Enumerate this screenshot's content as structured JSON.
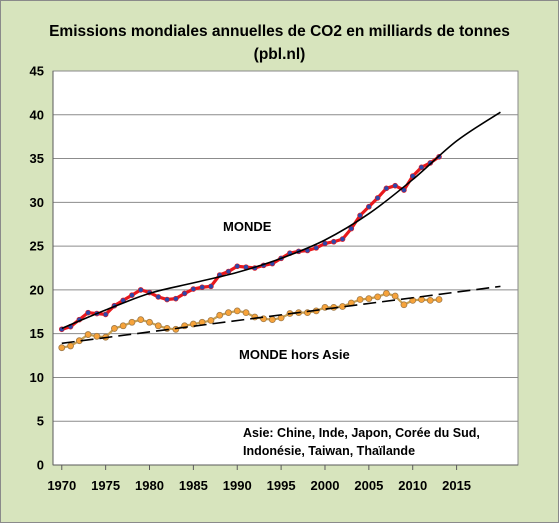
{
  "chart_data": {
    "type": "line",
    "title": "Emissions mondiales annuelles de CO2 en milliards de tonnes",
    "subtitle": "(pbl.nl)",
    "xlabel": "",
    "ylabel": "",
    "xlim": [
      1969,
      2022
    ],
    "ylim": [
      0,
      45
    ],
    "x_ticks": [
      1970,
      1975,
      1980,
      1985,
      1990,
      1995,
      2000,
      2005,
      2010,
      2015
    ],
    "y_ticks": [
      0,
      5,
      10,
      15,
      20,
      25,
      30,
      35,
      40,
      45
    ],
    "grid": {
      "horizontal": true,
      "vertical": false
    },
    "annotations": {
      "world": "MONDE",
      "world_ex_asia": "MONDE hors Asie",
      "note_line1": "Asie: Chine, Inde, Japon, Corée du Sud,",
      "note_line2": "Indonésie,  Taiwan, Thaïlande"
    },
    "series": [
      {
        "key": "world",
        "style": "markers-red-blue",
        "x": [
          1970,
          1971,
          1972,
          1973,
          1974,
          1975,
          1976,
          1977,
          1978,
          1979,
          1980,
          1981,
          1982,
          1983,
          1984,
          1985,
          1986,
          1987,
          1988,
          1989,
          1990,
          1991,
          1992,
          1993,
          1994,
          1995,
          1996,
          1997,
          1998,
          1999,
          2000,
          2001,
          2002,
          2003,
          2004,
          2005,
          2006,
          2007,
          2008,
          2009,
          2010,
          2011,
          2012,
          2013
        ],
        "values": [
          15.5,
          15.8,
          16.6,
          17.4,
          17.3,
          17.2,
          18.2,
          18.8,
          19.4,
          20.0,
          19.7,
          19.2,
          18.9,
          19.0,
          19.6,
          20.1,
          20.3,
          20.4,
          21.7,
          22.1,
          22.7,
          22.6,
          22.5,
          22.8,
          23.0,
          23.6,
          24.2,
          24.4,
          24.5,
          24.8,
          25.3,
          25.5,
          25.8,
          27.0,
          28.5,
          29.5,
          30.5,
          31.6,
          31.9,
          31.4,
          33.0,
          34.0,
          34.5,
          35.2
        ]
      },
      {
        "key": "world_trend",
        "style": "solid-black",
        "x": [
          1970,
          1975,
          1980,
          1985,
          1990,
          1995,
          2000,
          2005,
          2010,
          2015,
          2020
        ],
        "values": [
          15.6,
          17.7,
          19.6,
          20.8,
          22.0,
          23.6,
          25.7,
          28.7,
          32.6,
          37.0,
          40.3
        ]
      },
      {
        "key": "world_ex_asia",
        "style": "markers-orange",
        "x": [
          1970,
          1971,
          1972,
          1973,
          1974,
          1975,
          1976,
          1977,
          1978,
          1979,
          1980,
          1981,
          1982,
          1983,
          1984,
          1985,
          1986,
          1987,
          1988,
          1989,
          1990,
          1991,
          1992,
          1993,
          1994,
          1995,
          1996,
          1997,
          1998,
          1999,
          2000,
          2001,
          2002,
          2003,
          2004,
          2005,
          2006,
          2007,
          2008,
          2009,
          2010,
          2011,
          2012,
          2013
        ],
        "values": [
          13.4,
          13.6,
          14.2,
          14.9,
          14.7,
          14.6,
          15.6,
          15.9,
          16.3,
          16.6,
          16.3,
          15.9,
          15.6,
          15.5,
          15.9,
          16.1,
          16.3,
          16.5,
          17.1,
          17.4,
          17.6,
          17.4,
          16.9,
          16.7,
          16.6,
          16.8,
          17.3,
          17.4,
          17.4,
          17.6,
          18.0,
          18.0,
          18.1,
          18.5,
          18.9,
          19.0,
          19.2,
          19.6,
          19.3,
          18.3,
          18.8,
          18.9,
          18.8,
          18.9
        ]
      },
      {
        "key": "world_ex_asia_trend",
        "style": "dashed-black",
        "x": [
          1970,
          2020
        ],
        "values": [
          13.9,
          20.4
        ]
      }
    ]
  }
}
